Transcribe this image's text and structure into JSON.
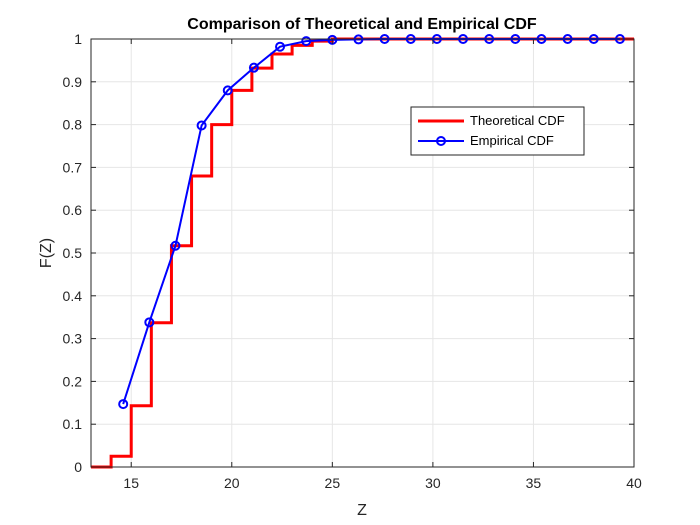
{
  "chart_data": {
    "type": "line",
    "title": "Comparison of Theoretical and Empirical CDF",
    "xlabel": "Z",
    "ylabel": "F(Z)",
    "xlim": [
      13,
      40
    ],
    "ylim": [
      0,
      1
    ],
    "xticks": [
      15,
      20,
      25,
      30,
      35,
      40
    ],
    "yticks": [
      0,
      0.1,
      0.2,
      0.3,
      0.4,
      0.5,
      0.6,
      0.7,
      0.8,
      0.9,
      1
    ],
    "grid": true,
    "legend_position": "upper-right",
    "series": [
      {
        "name": "Theoretical CDF",
        "style": "stairs",
        "color": "#ff0000",
        "x": [
          13,
          14,
          15,
          16,
          17,
          18,
          19,
          20,
          21,
          22,
          23,
          24,
          25,
          40
        ],
        "y": [
          0,
          0.025,
          0.143,
          0.337,
          0.517,
          0.68,
          0.8,
          0.88,
          0.932,
          0.965,
          0.985,
          0.995,
          1.0,
          1.0
        ]
      },
      {
        "name": "Empirical CDF",
        "style": "line-markers",
        "color": "#0000ff",
        "x": [
          14.6,
          15.9,
          17.2,
          18.5,
          19.8,
          21.1,
          22.4,
          23.7,
          25.0,
          26.3,
          27.6,
          28.9,
          30.2,
          31.5,
          32.8,
          34.1,
          35.4,
          36.7,
          38.0,
          39.3
        ],
        "y": [
          0.147,
          0.338,
          0.517,
          0.798,
          0.88,
          0.933,
          0.982,
          0.995,
          0.998,
          0.999,
          1.0,
          1.0,
          1.0,
          1.0,
          1.0,
          1.0,
          1.0,
          1.0,
          1.0,
          1.0
        ]
      }
    ]
  }
}
